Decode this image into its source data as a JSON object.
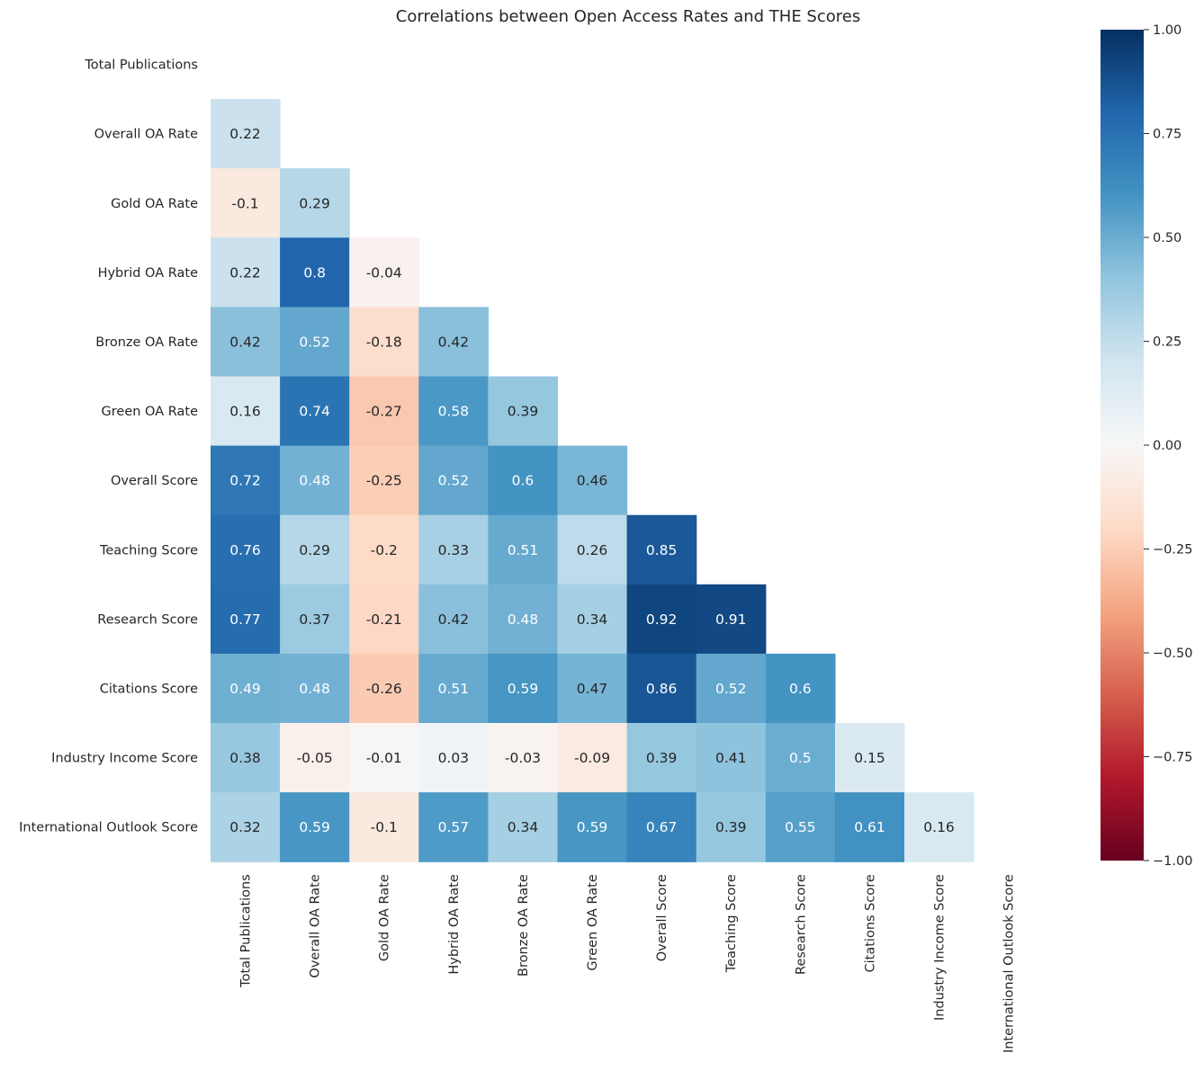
{
  "chart_data": {
    "type": "heatmap",
    "title": "Correlations between Open Access Rates and THE Scores",
    "xlabel": "",
    "ylabel": "",
    "labels": [
      "Total Publications",
      "Overall OA Rate",
      "Gold OA Rate",
      "Hybrid OA Rate",
      "Bronze OA Rate",
      "Green OA Rate",
      "Overall Score",
      "Teaching Score",
      "Research Score",
      "Citations Score",
      "Industry Income Score",
      "International Outlook Score"
    ],
    "mask": "upper triangle including diagonal",
    "lower_triangle": [
      [],
      [
        "0.22"
      ],
      [
        "-0.1",
        "0.29"
      ],
      [
        "0.22",
        "0.8",
        "-0.04"
      ],
      [
        "0.42",
        "0.52",
        "-0.18",
        "0.42"
      ],
      [
        "0.16",
        "0.74",
        "-0.27",
        "0.58",
        "0.39"
      ],
      [
        "0.72",
        "0.48",
        "-0.25",
        "0.52",
        "0.6",
        "0.46"
      ],
      [
        "0.76",
        "0.29",
        "-0.2",
        "0.33",
        "0.51",
        "0.26",
        "0.85"
      ],
      [
        "0.77",
        "0.37",
        "-0.21",
        "0.42",
        "0.48",
        "0.34",
        "0.92",
        "0.91"
      ],
      [
        "0.49",
        "0.48",
        "-0.26",
        "0.51",
        "0.59",
        "0.47",
        "0.86",
        "0.52",
        "0.6"
      ],
      [
        "0.38",
        "-0.05",
        "-0.01",
        "0.03",
        "-0.03",
        "-0.09",
        "0.39",
        "0.41",
        "0.5",
        "0.15"
      ],
      [
        "0.32",
        "0.59",
        "-0.1",
        "0.57",
        "0.34",
        "0.59",
        "0.67",
        "0.39",
        "0.55",
        "0.61",
        "0.16"
      ]
    ],
    "colormap": "RdBu",
    "vmin": -1.0,
    "vmax": 1.0,
    "colorbar_ticks": [
      "1.00",
      "0.75",
      "0.50",
      "0.25",
      "0.00",
      "−0.25",
      "−0.50",
      "−0.75",
      "−1.00"
    ],
    "colorbar_tick_values": [
      1.0,
      0.75,
      0.5,
      0.25,
      0.0,
      -0.25,
      -0.5,
      -0.75,
      -1.0
    ],
    "grid": false,
    "legend": "colorbar right"
  }
}
